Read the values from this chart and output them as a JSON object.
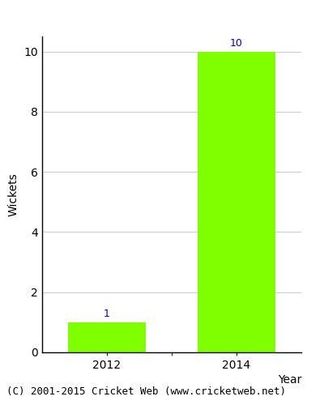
{
  "categories": [
    "2012",
    "2014"
  ],
  "values": [
    1,
    10
  ],
  "bar_color": "#7fff00",
  "bar_edgecolor": "#7fff00",
  "xlabel": "Year",
  "ylabel": "Wickets",
  "ylim": [
    0,
    10.5
  ],
  "yticks": [
    0,
    2,
    4,
    6,
    8,
    10
  ],
  "label_color": "#0000cc",
  "label_fontsize": 9,
  "axis_fontsize": 10,
  "tick_fontsize": 10,
  "background_color": "#ffffff",
  "grid_color": "#cccccc",
  "footer_text": "(C) 2001-2015 Cricket Web (www.cricketweb.net)",
  "footer_fontsize": 9,
  "bar_width": 0.6
}
